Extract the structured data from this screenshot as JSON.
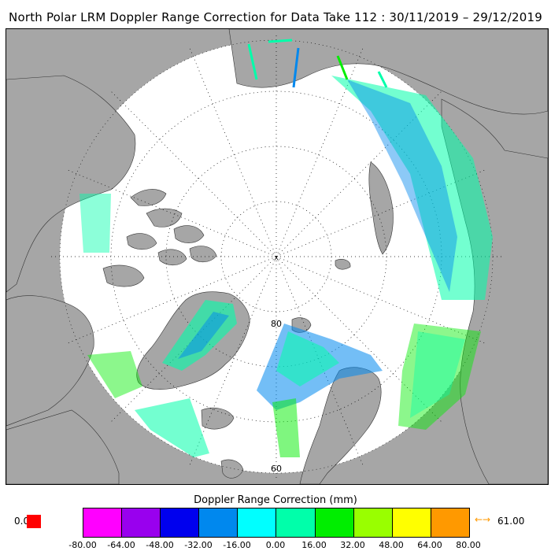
{
  "title": "North Polar LRM Doppler Range Correction for Data Take 112 : 30/11/2019 – 29/12/2019",
  "map": {
    "pole_marker": "x",
    "latitude_labels": [
      "80",
      "60"
    ],
    "colors": {
      "land": "#a6a6a6",
      "ocean": "#ffffff",
      "graticule": "#000000"
    }
  },
  "colorbar": {
    "title": "Doppler Range Correction (mm)",
    "ticks": [
      "-80.00",
      "-64.00",
      "-48.00",
      "-32.00",
      "-16.00",
      "0.00",
      "16.00",
      "32.00",
      "48.00",
      "64.00",
      "80.00"
    ],
    "colors": [
      "#ff00ff",
      "#9900ee",
      "#0000ee",
      "#0088ee",
      "#00ffff",
      "#00ffaa",
      "#00ee00",
      "#99ff00",
      "#ffff00",
      "#ff9900"
    ],
    "under_value": "0.00",
    "under_color": "#ff0000",
    "over_arrow": "←→",
    "over_color": "#ff9900",
    "over_value": "61.00"
  }
}
